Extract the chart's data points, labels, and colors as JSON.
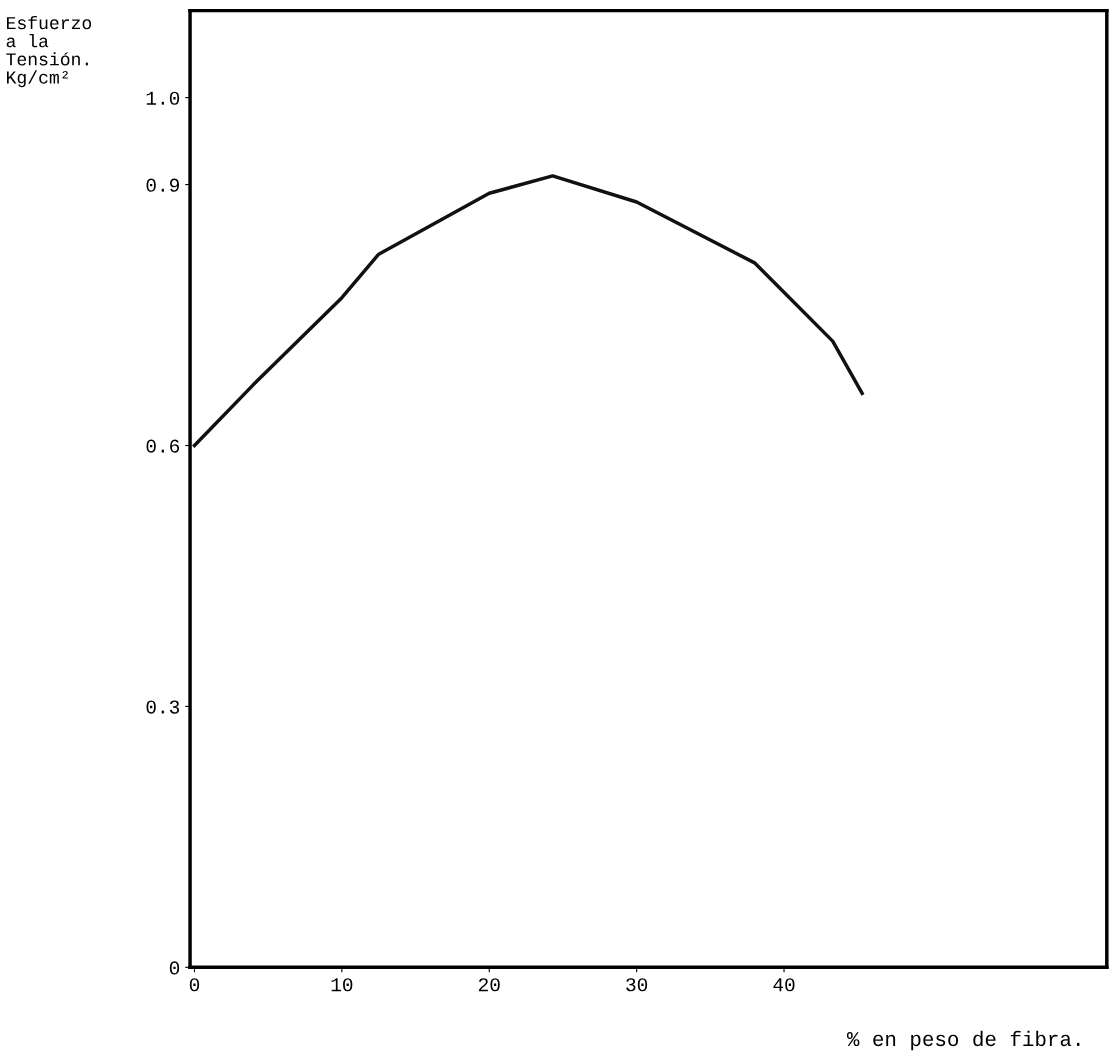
{
  "chart_data": {
    "type": "line",
    "ylabel": "Esfuerzo\na la\nTensión.\nKg/cm²",
    "xlabel": "% en peso de fibra.",
    "x": [
      0,
      4,
      10,
      12.5,
      20,
      24.3,
      30,
      38,
      43.3,
      45.3
    ],
    "series": [
      {
        "color": "#111111",
        "values": [
          0.6,
          0.67,
          0.77,
          0.82,
          0.89,
          0.91,
          0.88,
          0.81,
          0.72,
          0.66
        ]
      }
    ],
    "xlim": [
      -0.3,
      61.9
    ],
    "ylim": [
      0,
      1.1
    ],
    "xticks": [
      0,
      10,
      20,
      30,
      40
    ],
    "yticks": [
      0,
      0.3,
      0.6,
      0.9,
      {
        "value": 1.0,
        "label": "1.0"
      }
    ],
    "grid": false,
    "marker": "none",
    "line_style": "solid"
  }
}
